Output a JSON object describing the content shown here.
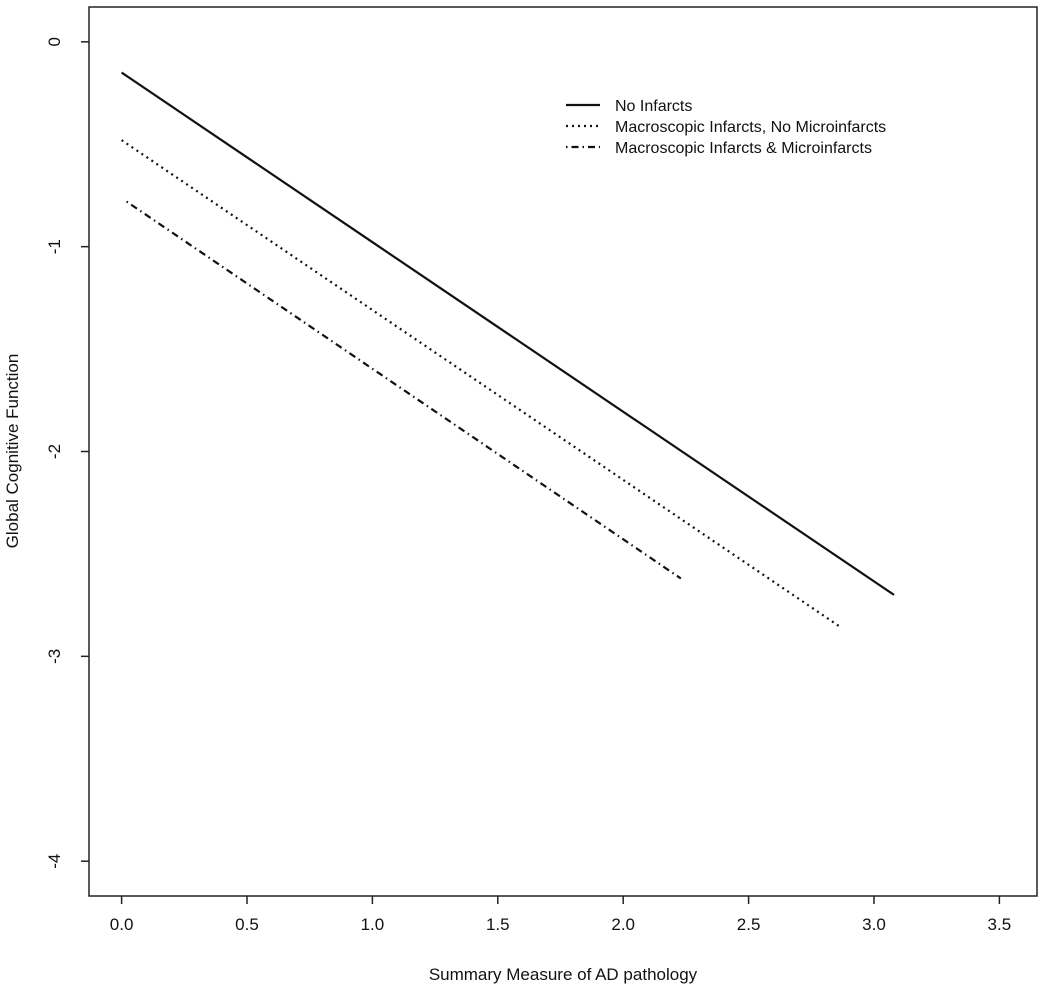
{
  "chart_data": {
    "type": "line",
    "title": "",
    "xlabel": "Summary Measure of AD pathology",
    "ylabel": "Global Cognitive Function",
    "xlim": [
      -0.13,
      3.65
    ],
    "ylim": [
      -4.17,
      0.17
    ],
    "xticks": [
      0.0,
      0.5,
      1.0,
      1.5,
      2.0,
      2.5,
      3.0,
      3.5
    ],
    "xtick_labels": [
      "0.0",
      "0.5",
      "1.0",
      "1.5",
      "2.0",
      "2.5",
      "3.0",
      "3.5"
    ],
    "yticks": [
      0,
      -1,
      -2,
      -3,
      -4
    ],
    "ytick_labels": [
      "0",
      "-1",
      "-2",
      "-3",
      "-4"
    ],
    "grid": false,
    "legend_position": "top-right",
    "series": [
      {
        "name": "No Infarcts",
        "style": "solid",
        "x": [
          0.0,
          3.08
        ],
        "y": [
          -0.15,
          -2.7
        ]
      },
      {
        "name": "Macroscopic Infarcts, No Microinfarcts",
        "style": "dotted",
        "x": [
          0.0,
          2.87
        ],
        "y": [
          -0.48,
          -2.86
        ]
      },
      {
        "name": "Macroscopic Infarcts & Microinfarcts",
        "style": "dotdash",
        "x": [
          0.02,
          2.23
        ],
        "y": [
          -0.78,
          -2.62
        ]
      }
    ]
  }
}
